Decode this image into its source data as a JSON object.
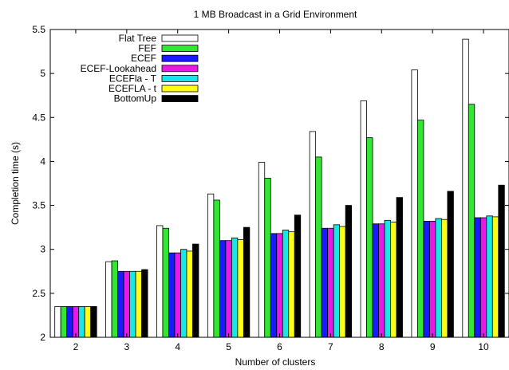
{
  "chart_data": {
    "type": "bar",
    "title": "1 MB Broadcast in a Grid Environment",
    "xlabel": "Number of clusters",
    "ylabel": "Completion time (s)",
    "ylim": [
      2,
      5.5
    ],
    "yticks": [
      "2",
      "2.5",
      "3",
      "3.5",
      "4",
      "4.5",
      "5",
      "5.5"
    ],
    "categories": [
      "2",
      "3",
      "4",
      "5",
      "6",
      "7",
      "8",
      "9",
      "10"
    ],
    "legend_position": "top-left",
    "series": [
      {
        "name": "Flat Tree",
        "color": "#ffffff",
        "values": [
          2.35,
          2.86,
          3.27,
          3.63,
          3.99,
          4.34,
          4.69,
          5.04,
          5.39
        ]
      },
      {
        "name": "FEF",
        "color": "#33e633",
        "values": [
          2.35,
          2.87,
          3.24,
          3.56,
          3.81,
          4.05,
          4.27,
          4.47,
          4.65
        ]
      },
      {
        "name": "ECEF",
        "color": "#1a1aff",
        "values": [
          2.35,
          2.75,
          2.96,
          3.1,
          3.18,
          3.24,
          3.29,
          3.32,
          3.36
        ]
      },
      {
        "name": "ECEF-Lookahead",
        "color": "#e61ae6",
        "values": [
          2.35,
          2.75,
          2.96,
          3.1,
          3.18,
          3.24,
          3.29,
          3.32,
          3.36
        ]
      },
      {
        "name": "ECEFla - T",
        "color": "#1ae6e6",
        "values": [
          2.35,
          2.75,
          3.0,
          3.13,
          3.22,
          3.28,
          3.33,
          3.35,
          3.38
        ]
      },
      {
        "name": "ECEFLA - t",
        "color": "#ffff1a",
        "values": [
          2.35,
          2.75,
          2.98,
          3.11,
          3.2,
          3.26,
          3.31,
          3.34,
          3.37
        ]
      },
      {
        "name": "BottomUp",
        "color": "#000000",
        "values": [
          2.35,
          2.77,
          3.06,
          3.25,
          3.39,
          3.5,
          3.59,
          3.66,
          3.73
        ]
      }
    ]
  }
}
